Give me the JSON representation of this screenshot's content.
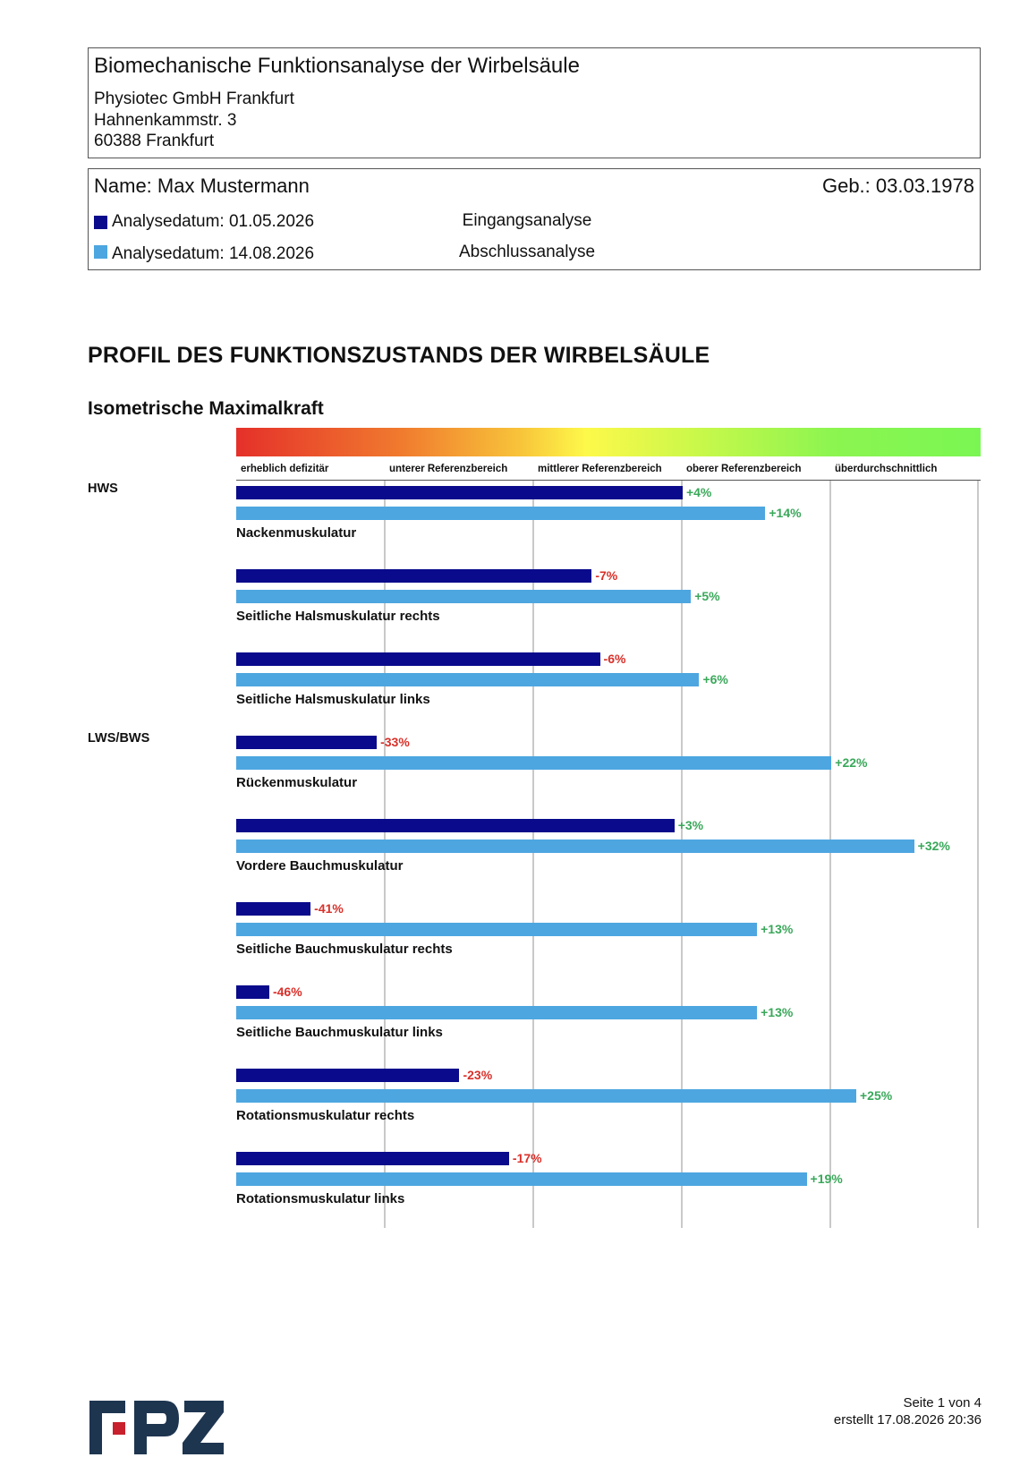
{
  "header": {
    "title": "Biomechanische Funktionsanalyse der Wirbelsäule",
    "company": "Physiotec GmbH Frankfurt",
    "street": "Hahnenkammstr. 3",
    "city": "60388  Frankfurt"
  },
  "patient": {
    "name": "Name: Max  Mustermann",
    "birth": "Geb.: 03.03.1978",
    "analyses": [
      {
        "date": "Analysedatum: 01.05.2026",
        "kind": "Eingangsanalyse",
        "color": "#0a0a8c"
      },
      {
        "date": "Analysedatum: 14.08.2026",
        "kind": "Abschlussanalyse",
        "color": "#4da6e0"
      }
    ]
  },
  "section_title": "PROFIL DES FUNKTIONSZUSTANDS DER WIRBELSÄULE",
  "subsection_title": "Isometrische Maximalkraft",
  "chart_data": {
    "type": "bar",
    "orientation": "horizontal",
    "categories_scale": [
      "erheblich defizitär",
      "unterer Referenzbereich",
      "mittlerer Referenzbereich",
      "oberer Referenzbereich",
      "überdurchschnittlich"
    ],
    "colors": {
      "series1": "#0a0a8c",
      "series2": "#4da6e0",
      "positive": "#3aa85a",
      "negative": "#d8302a"
    },
    "groups": [
      {
        "label": "HWS",
        "muscles": [
          {
            "label": "Nackenmuskulatur",
            "values": [
              4,
              14
            ],
            "texts": [
              "+4%",
              "+14%"
            ]
          },
          {
            "label": "Seitliche Halsmuskulatur rechts",
            "values": [
              -7,
              5
            ],
            "texts": [
              "-7%",
              "+5%"
            ]
          },
          {
            "label": "Seitliche Halsmuskulatur links",
            "values": [
              -6,
              6
            ],
            "texts": [
              "-6%",
              "+6%"
            ]
          }
        ]
      },
      {
        "label": "LWS/BWS",
        "muscles": [
          {
            "label": "Rückenmuskulatur",
            "values": [
              -33,
              22
            ],
            "texts": [
              "-33%",
              "+22%"
            ]
          },
          {
            "label": "Vordere Bauchmuskulatur",
            "values": [
              3,
              32
            ],
            "texts": [
              "+3%",
              "+32%"
            ]
          },
          {
            "label": "Seitliche Bauchmuskulatur rechts",
            "values": [
              -41,
              13
            ],
            "texts": [
              "-41%",
              "+13%"
            ]
          },
          {
            "label": "Seitliche Bauchmuskulatur links",
            "values": [
              -46,
              13
            ],
            "texts": [
              "-46%",
              "+13%"
            ]
          },
          {
            "label": "Rotationsmuskulatur rechts",
            "values": [
              -23,
              25
            ],
            "texts": [
              "-23%",
              "+25%"
            ]
          },
          {
            "label": "Rotationsmuskulatur links",
            "values": [
              -17,
              19
            ],
            "texts": [
              "-17%",
              "+19%"
            ]
          }
        ]
      }
    ]
  },
  "logo": {
    "text": "FPZ",
    "colors": [
      "#1e3550",
      "#c8202c"
    ]
  },
  "footer": {
    "page": "Seite 1 von 4",
    "created": "erstellt 17.08.2026 20:36"
  }
}
